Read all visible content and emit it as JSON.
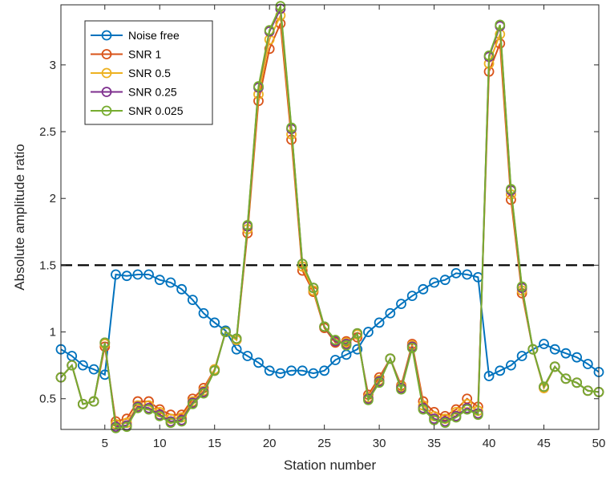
{
  "chart_data": {
    "type": "line",
    "title": "",
    "xlabel": "Station number",
    "ylabel": "Absolute amplitude ratio",
    "xlim": [
      1,
      50
    ],
    "ylim": [
      0.27,
      3.45
    ],
    "xticks": [
      5,
      10,
      15,
      20,
      25,
      30,
      35,
      40,
      45,
      50
    ],
    "yticks": [
      0.5,
      1,
      1.5,
      2,
      2.5,
      3
    ],
    "ytick_labels": [
      "0.5",
      "1",
      "1.5",
      "2",
      "2.5",
      "3"
    ],
    "grid": false,
    "legend_position": "top-left",
    "threshold": 1.5,
    "x": [
      1,
      2,
      3,
      4,
      5,
      6,
      7,
      8,
      9,
      10,
      11,
      12,
      13,
      14,
      15,
      16,
      17,
      18,
      19,
      20,
      21,
      22,
      23,
      24,
      25,
      26,
      27,
      28,
      29,
      30,
      31,
      32,
      33,
      34,
      35,
      36,
      37,
      38,
      39,
      40,
      41,
      42,
      43,
      44,
      45,
      46,
      47,
      48,
      49,
      50
    ],
    "series": [
      {
        "name": "Noise free",
        "color": "#0072BD",
        "values": [
          0.87,
          0.82,
          0.75,
          0.72,
          0.68,
          1.43,
          1.42,
          1.43,
          1.43,
          1.39,
          1.37,
          1.32,
          1.24,
          1.14,
          1.07,
          1.01,
          0.87,
          0.82,
          0.77,
          0.71,
          0.69,
          0.71,
          0.71,
          0.69,
          0.71,
          0.79,
          0.83,
          0.87,
          1.0,
          1.07,
          1.14,
          1.21,
          1.27,
          1.32,
          1.37,
          1.39,
          1.44,
          1.43,
          1.41,
          0.67,
          0.71,
          0.75,
          0.82,
          0.87,
          0.91,
          0.87,
          0.84,
          0.81,
          0.76,
          0.7
        ]
      },
      {
        "name": "SNR 1",
        "color": "#D95319",
        "values": [
          0.66,
          0.75,
          0.46,
          0.48,
          0.89,
          0.33,
          0.35,
          0.48,
          0.48,
          0.42,
          0.38,
          0.38,
          0.5,
          0.58,
          0.72,
          1.0,
          0.94,
          1.74,
          2.73,
          3.12,
          3.31,
          2.44,
          1.46,
          1.3,
          1.03,
          0.92,
          0.93,
          0.96,
          0.53,
          0.66,
          0.8,
          0.6,
          0.91,
          0.48,
          0.4,
          0.37,
          0.42,
          0.5,
          0.44,
          2.95,
          3.16,
          1.99,
          1.29,
          0.87,
          0.58,
          0.74,
          0.65,
          0.62,
          0.56,
          0.55
        ]
      },
      {
        "name": "SNR 0.5",
        "color": "#EDB120",
        "values": [
          0.66,
          0.75,
          0.46,
          0.48,
          0.91,
          0.31,
          0.32,
          0.45,
          0.45,
          0.4,
          0.35,
          0.36,
          0.48,
          0.56,
          0.72,
          1.0,
          0.94,
          1.77,
          2.78,
          3.19,
          3.37,
          2.48,
          1.49,
          1.31,
          1.04,
          0.93,
          0.92,
          0.98,
          0.51,
          0.64,
          0.8,
          0.59,
          0.9,
          0.45,
          0.37,
          0.35,
          0.4,
          0.46,
          0.41,
          3.01,
          3.23,
          2.03,
          1.31,
          0.87,
          0.58,
          0.74,
          0.65,
          0.62,
          0.56,
          0.55
        ]
      },
      {
        "name": "SNR 0.25",
        "color": "#7E2F8E",
        "values": [
          0.66,
          0.75,
          0.46,
          0.48,
          0.92,
          0.29,
          0.3,
          0.44,
          0.43,
          0.38,
          0.33,
          0.34,
          0.47,
          0.55,
          0.71,
          1.0,
          0.95,
          1.79,
          2.83,
          3.25,
          3.42,
          2.52,
          1.51,
          1.33,
          1.04,
          0.93,
          0.91,
          0.99,
          0.5,
          0.63,
          0.8,
          0.58,
          0.89,
          0.43,
          0.35,
          0.33,
          0.37,
          0.43,
          0.39,
          3.06,
          3.29,
          2.06,
          1.33,
          0.87,
          0.59,
          0.74,
          0.65,
          0.62,
          0.56,
          0.55
        ]
      },
      {
        "name": "SNR 0.025",
        "color": "#77AC30",
        "values": [
          0.66,
          0.75,
          0.46,
          0.48,
          0.92,
          0.28,
          0.29,
          0.43,
          0.42,
          0.37,
          0.32,
          0.33,
          0.46,
          0.54,
          0.71,
          1.0,
          0.95,
          1.8,
          2.84,
          3.26,
          3.44,
          2.53,
          1.51,
          1.33,
          1.04,
          0.94,
          0.9,
          0.99,
          0.49,
          0.62,
          0.8,
          0.57,
          0.88,
          0.42,
          0.34,
          0.32,
          0.36,
          0.42,
          0.38,
          3.07,
          3.3,
          2.07,
          1.34,
          0.87,
          0.59,
          0.74,
          0.65,
          0.62,
          0.56,
          0.55
        ]
      }
    ]
  }
}
